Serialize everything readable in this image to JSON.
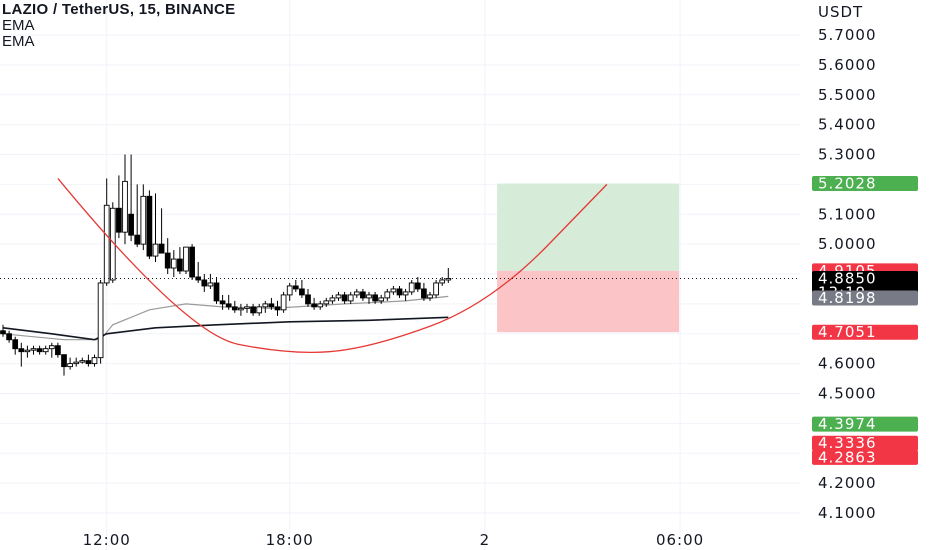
{
  "header": {
    "title": "LAZIO / TetherUS, 15, BINANCE",
    "indicators": [
      "EMA",
      "EMA"
    ]
  },
  "chart_data": {
    "type": "candlestick",
    "symbol": "LAZIO / TetherUS",
    "interval": "15",
    "exchange": "BINANCE",
    "currency": "USDT",
    "ylim": [
      4.05,
      5.79
    ],
    "y_ticks": [
      "5.7000",
      "5.6000",
      "5.5000",
      "5.4000",
      "5.3000",
      "5.1000",
      "5.0000",
      "4.6000",
      "4.5000",
      "4.2000",
      "4.1000"
    ],
    "y_tick_values": [
      5.7,
      5.6,
      5.5,
      5.4,
      5.3,
      5.1,
      5.0,
      4.6,
      4.5,
      4.2,
      4.1
    ],
    "x_ticks": [
      {
        "label": "12:00",
        "bar": 17
      },
      {
        "label": "18:00",
        "bar": 47
      },
      {
        "label": "2",
        "bar": 79
      },
      {
        "label": "06:00",
        "bar": 111
      }
    ],
    "price_tags": [
      {
        "label": "5.2028",
        "value": 5.2028,
        "color": "#4caf50",
        "text2": ""
      },
      {
        "label": "4.9105",
        "value": 4.9105,
        "color": "#f23645",
        "text2": ""
      },
      {
        "label": "4.8850",
        "value": 4.885,
        "color": "#000000",
        "text2": "13:19"
      },
      {
        "label": "4.8198",
        "value": 4.8198,
        "color": "#787b86",
        "text2": ""
      },
      {
        "label": "4.7051",
        "value": 4.7051,
        "color": "#f23645",
        "text2": ""
      },
      {
        "label": "4.3974",
        "value": 4.3974,
        "color": "#4caf50",
        "text2": ""
      },
      {
        "label": "4.3336",
        "value": 4.3336,
        "color": "#f23645",
        "text2": ""
      },
      {
        "label": "4.2863",
        "value": 4.2863,
        "color": "#f23645",
        "text2": ""
      }
    ],
    "last_price": 4.885,
    "candles": [
      [
        4.71,
        4.73,
        4.69,
        4.7
      ],
      [
        4.7,
        4.71,
        4.67,
        4.68
      ],
      [
        4.68,
        4.69,
        4.63,
        4.65
      ],
      [
        4.65,
        4.67,
        4.59,
        4.64
      ],
      [
        4.64,
        4.66,
        4.62,
        4.645
      ],
      [
        4.645,
        4.66,
        4.63,
        4.65
      ],
      [
        4.65,
        4.66,
        4.63,
        4.64
      ],
      [
        4.64,
        4.66,
        4.63,
        4.65
      ],
      [
        4.65,
        4.67,
        4.62,
        4.66
      ],
      [
        4.66,
        4.67,
        4.62,
        4.63
      ],
      [
        4.63,
        4.63,
        4.56,
        4.59
      ],
      [
        4.59,
        4.62,
        4.58,
        4.6
      ],
      [
        4.6,
        4.62,
        4.59,
        4.605
      ],
      [
        4.605,
        4.62,
        4.6,
        4.61
      ],
      [
        4.61,
        4.63,
        4.59,
        4.6
      ],
      [
        4.6,
        4.63,
        4.59,
        4.62
      ],
      [
        4.62,
        4.88,
        4.6,
        4.87
      ],
      [
        4.87,
        5.22,
        4.86,
        5.13
      ],
      [
        4.88,
        5.14,
        4.87,
        5.12
      ],
      [
        5.12,
        5.23,
        5.02,
        5.04
      ],
      [
        5.04,
        5.3,
        5.0,
        5.21
      ],
      [
        5.1,
        5.3,
        5.01,
        5.03
      ],
      [
        5.03,
        5.2,
        4.99,
        5.0
      ],
      [
        5.0,
        5.2,
        4.98,
        5.16
      ],
      [
        5.16,
        5.18,
        4.95,
        4.96
      ],
      [
        4.96,
        5.17,
        4.94,
        5.0
      ],
      [
        5.0,
        5.12,
        4.97,
        4.97
      ],
      [
        4.97,
        5.02,
        4.9,
        4.92
      ],
      [
        4.92,
        4.98,
        4.89,
        4.95
      ],
      [
        4.95,
        4.99,
        4.9,
        4.91
      ],
      [
        4.91,
        4.99,
        4.9,
        4.99
      ],
      [
        4.99,
        5.0,
        4.88,
        4.89
      ],
      [
        4.89,
        4.94,
        4.87,
        4.88
      ],
      [
        4.88,
        4.9,
        4.84,
        4.86
      ],
      [
        4.86,
        4.9,
        4.85,
        4.87
      ],
      [
        4.87,
        4.89,
        4.8,
        4.81
      ],
      [
        4.81,
        4.83,
        4.78,
        4.8
      ],
      [
        4.8,
        4.83,
        4.78,
        4.79
      ],
      [
        4.79,
        4.81,
        4.77,
        4.78
      ],
      [
        4.78,
        4.8,
        4.76,
        4.785
      ],
      [
        4.785,
        4.8,
        4.77,
        4.79
      ],
      [
        4.79,
        4.8,
        4.76,
        4.77
      ],
      [
        4.77,
        4.8,
        4.76,
        4.79
      ],
      [
        4.79,
        4.81,
        4.77,
        4.8
      ],
      [
        4.8,
        4.82,
        4.78,
        4.79
      ],
      [
        4.79,
        4.81,
        4.76,
        4.78
      ],
      [
        4.78,
        4.84,
        4.77,
        4.83
      ],
      [
        4.83,
        4.87,
        4.81,
        4.86
      ],
      [
        4.86,
        4.88,
        4.84,
        4.85
      ],
      [
        4.85,
        4.88,
        4.82,
        4.83
      ],
      [
        4.83,
        4.85,
        4.79,
        4.8
      ],
      [
        4.8,
        4.82,
        4.78,
        4.79
      ],
      [
        4.79,
        4.81,
        4.78,
        4.8
      ],
      [
        4.8,
        4.82,
        4.79,
        4.81
      ],
      [
        4.81,
        4.83,
        4.8,
        4.82
      ],
      [
        4.82,
        4.84,
        4.81,
        4.83
      ],
      [
        4.83,
        4.84,
        4.8,
        4.81
      ],
      [
        4.81,
        4.84,
        4.8,
        4.83
      ],
      [
        4.83,
        4.85,
        4.82,
        4.84
      ],
      [
        4.84,
        4.85,
        4.81,
        4.82
      ],
      [
        4.82,
        4.84,
        4.8,
        4.83
      ],
      [
        4.83,
        4.84,
        4.8,
        4.81
      ],
      [
        4.81,
        4.83,
        4.8,
        4.82
      ],
      [
        4.82,
        4.85,
        4.81,
        4.84
      ],
      [
        4.84,
        4.86,
        4.83,
        4.85
      ],
      [
        4.85,
        4.86,
        4.82,
        4.83
      ],
      [
        4.83,
        4.85,
        4.81,
        4.84
      ],
      [
        4.84,
        4.88,
        4.83,
        4.87
      ],
      [
        4.87,
        4.89,
        4.84,
        4.85
      ],
      [
        4.85,
        4.87,
        4.81,
        4.82
      ],
      [
        4.82,
        4.84,
        4.81,
        4.83
      ],
      [
        4.83,
        4.88,
        4.82,
        4.87
      ],
      [
        4.87,
        4.89,
        4.86,
        4.88
      ],
      [
        4.88,
        4.92,
        4.87,
        4.885
      ]
    ],
    "ema_slow": [
      [
        0,
        4.72
      ],
      [
        8,
        4.7
      ],
      [
        15,
        4.68
      ],
      [
        17,
        4.7
      ],
      [
        25,
        4.72
      ],
      [
        35,
        4.73
      ],
      [
        47,
        4.74
      ],
      [
        60,
        4.745
      ],
      [
        73,
        4.755
      ]
    ],
    "ema_fast": [
      [
        0,
        4.7
      ],
      [
        10,
        4.68
      ],
      [
        16,
        4.68
      ],
      [
        18,
        4.73
      ],
      [
        24,
        4.78
      ],
      [
        30,
        4.8
      ],
      [
        36,
        4.79
      ],
      [
        44,
        4.785
      ],
      [
        56,
        4.8
      ],
      [
        66,
        4.81
      ],
      [
        73,
        4.825
      ]
    ],
    "curve": [
      [
        9,
        5.22
      ],
      [
        30,
        4.7
      ],
      [
        47,
        4.63
      ],
      [
        60,
        4.65
      ],
      [
        80,
        4.8
      ],
      [
        99,
        5.2
      ]
    ],
    "position": {
      "bar_start": 81,
      "bar_end": 101,
      "entry": 4.9105,
      "target": 5.2028,
      "stop": 4.7051,
      "profit_color": "#d6ecd9",
      "loss_color": "#fbc5c8"
    }
  }
}
